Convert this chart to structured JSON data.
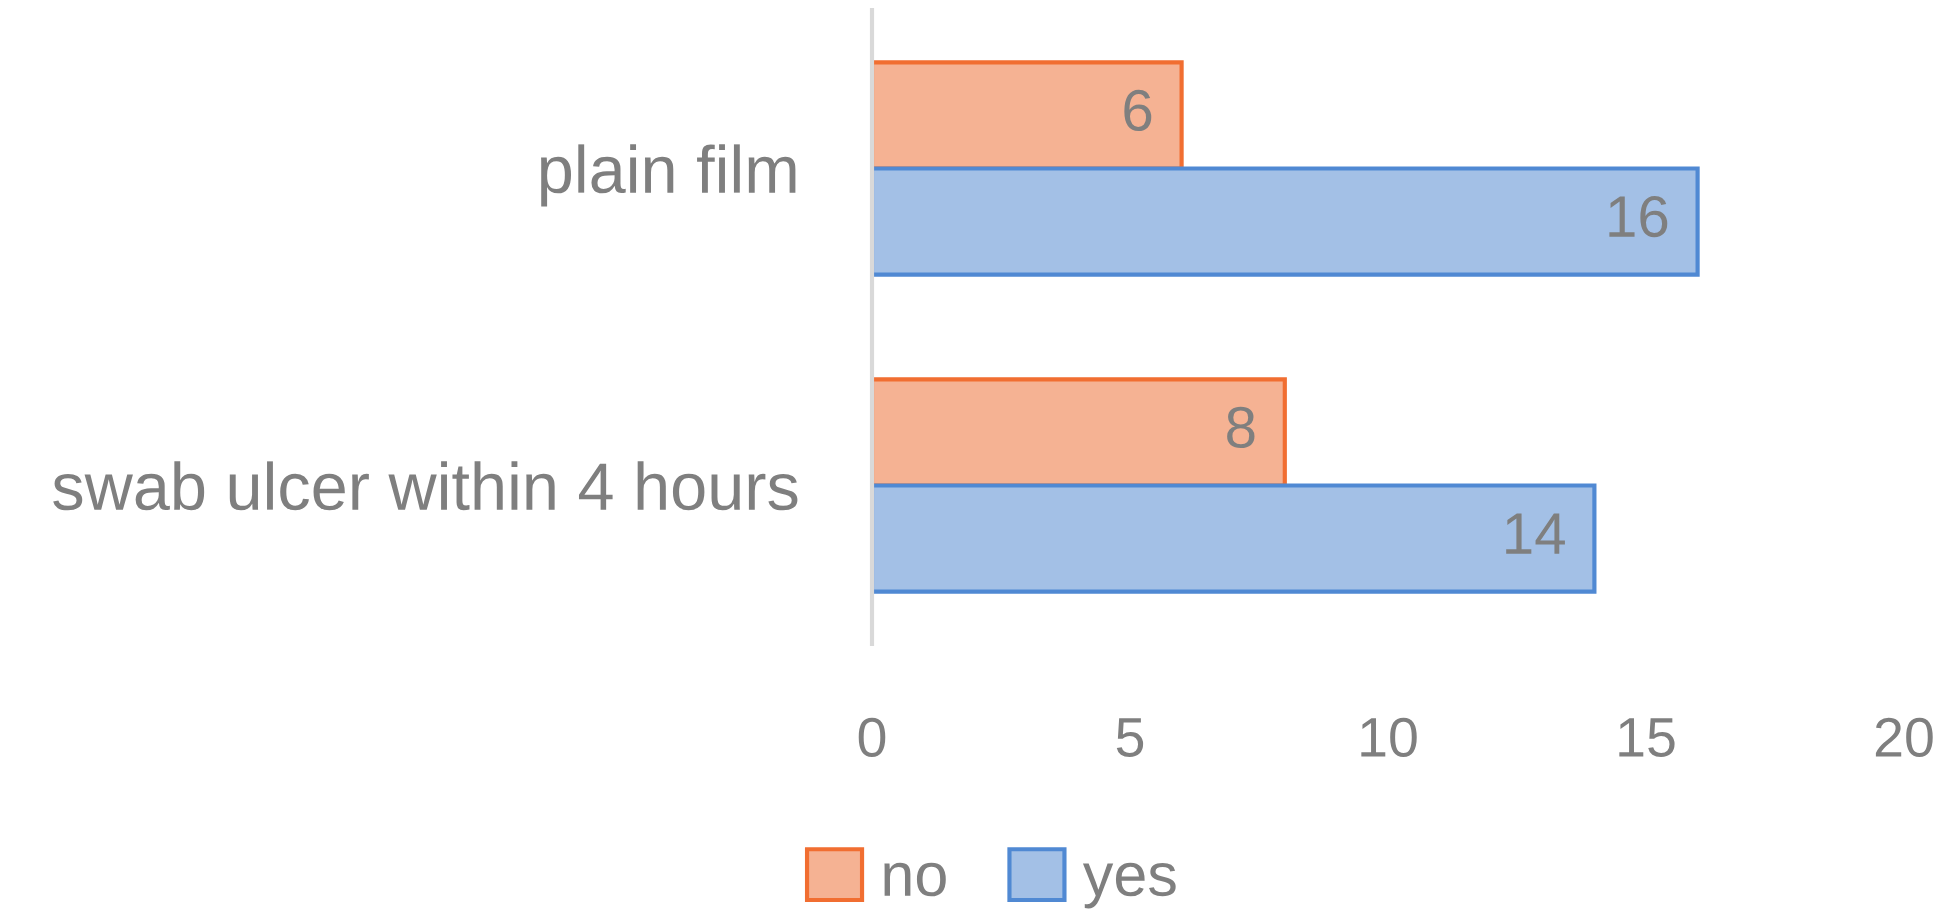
{
  "chart_data": {
    "type": "bar",
    "orientation": "horizontal",
    "categories": [
      "plain film",
      "swab ulcer within 4 hours"
    ],
    "series": [
      {
        "name": "no",
        "color": "#f5b293",
        "values": [
          6,
          8
        ]
      },
      {
        "name": "yes",
        "color": "#a3c0e6",
        "values": [
          16,
          14
        ]
      }
    ],
    "xlim": [
      0,
      20
    ],
    "xticks": [
      0,
      5,
      10,
      15,
      20
    ],
    "data_labels": true,
    "legend": "bottom",
    "grid": false
  }
}
